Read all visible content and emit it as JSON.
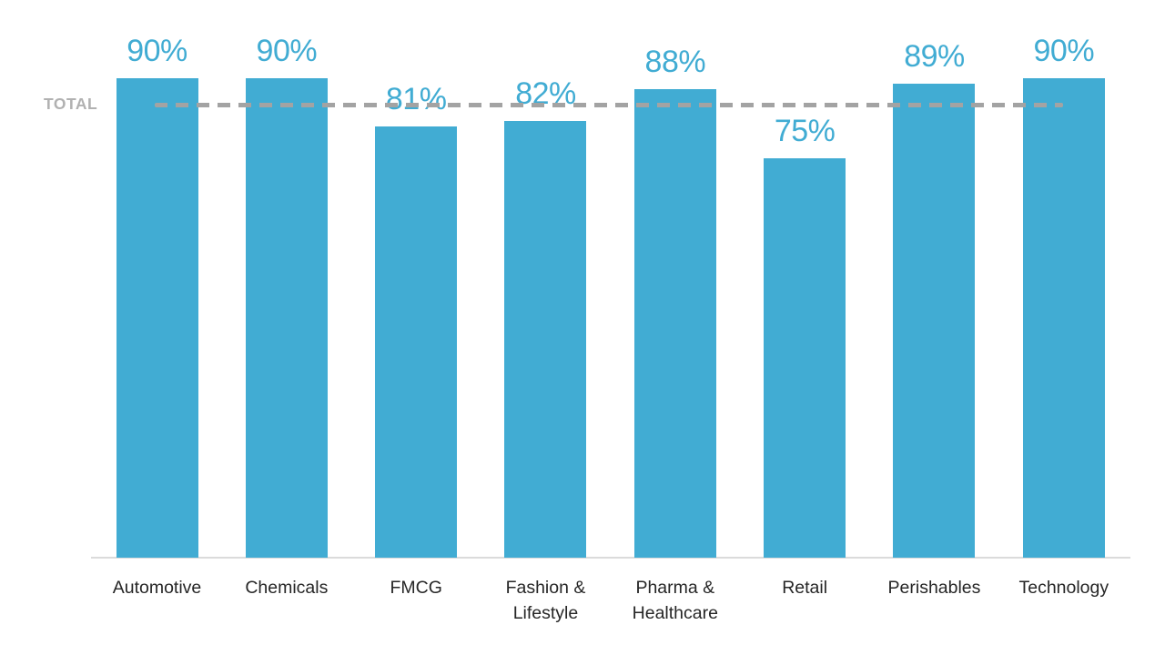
{
  "chart_data": {
    "type": "bar",
    "categories": [
      "Automotive",
      "Chemicals",
      "FMCG",
      "Fashion & Lifestyle",
      "Pharma & Healthcare",
      "Retail",
      "Perishables",
      "Technology"
    ],
    "values": [
      90,
      90,
      81,
      82,
      88,
      75,
      89,
      90
    ],
    "value_labels": [
      "90%",
      "90%",
      "81%",
      "82%",
      "88%",
      "75%",
      "89%",
      "90%"
    ],
    "title": "",
    "xlabel": "",
    "ylabel": "",
    "ylim": [
      0,
      100
    ],
    "grid": false,
    "legend": "none",
    "reference_line": {
      "label": "TOTAL",
      "value": 85
    },
    "colors": {
      "bar": "#41ACD3",
      "value_label": "#41ACD3",
      "category_label": "#262626",
      "reference_dash": "#A3A3A3",
      "reference_label": "#B1B1B1",
      "axis": "#DBDBDB"
    }
  }
}
